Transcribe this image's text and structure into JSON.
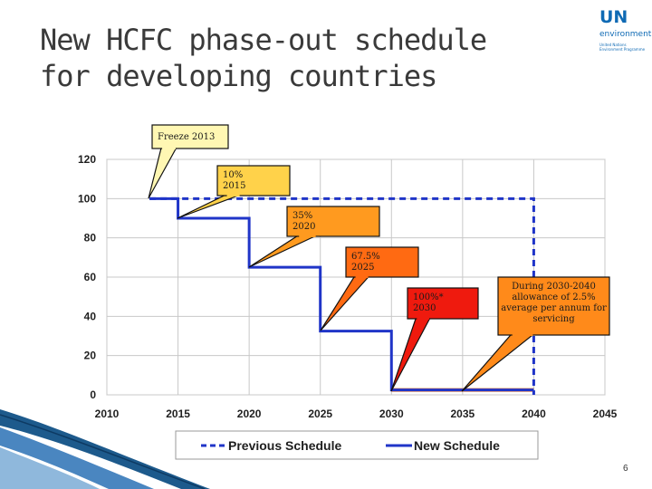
{
  "title": {
    "line1": "New HCFC phase-out schedule",
    "line2": "for developing countries"
  },
  "logo": {
    "text": "UN",
    "subtext": "environment",
    "small": [
      "United Nations",
      "Environment Programme"
    ]
  },
  "page_number": "6",
  "colors": {
    "previous": "#2035c8",
    "new": "#2035c8",
    "allowance": "#f07a28",
    "freeze_box": "#fff7b3",
    "grid": "#c8c8c8"
  },
  "chart_data": {
    "type": "line",
    "xlim": [
      2010,
      2045
    ],
    "ylim": [
      0,
      120
    ],
    "x_ticks": [
      2010,
      2015,
      2020,
      2025,
      2030,
      2035,
      2040,
      2045
    ],
    "y_ticks": [
      0,
      20,
      40,
      60,
      80,
      100,
      120
    ],
    "grid": true,
    "legend_position": "bottom",
    "series": [
      {
        "name": "Previous Schedule",
        "style": "dashed",
        "points": [
          [
            2013,
            100
          ],
          [
            2040,
            100
          ],
          [
            2040,
            0
          ]
        ]
      },
      {
        "name": "New Schedule",
        "style": "solid",
        "points": [
          [
            2013,
            100
          ],
          [
            2015,
            100
          ],
          [
            2015,
            90
          ],
          [
            2020,
            90
          ],
          [
            2020,
            65
          ],
          [
            2025,
            65
          ],
          [
            2025,
            32.5
          ],
          [
            2030,
            32.5
          ],
          [
            2030,
            2.5
          ],
          [
            2040,
            2.5
          ]
        ]
      }
    ],
    "allowance_band": {
      "points": [
        [
          2030,
          2.5
        ],
        [
          2040,
          2.5
        ]
      ]
    },
    "annotations": [
      {
        "lines": [
          "Freeze 2013"
        ],
        "fill": "#fff7b3",
        "target": [
          2013,
          100
        ]
      },
      {
        "lines": [
          "10%",
          "2015"
        ],
        "fill": "#ffd24a",
        "target": [
          2015,
          90
        ]
      },
      {
        "lines": [
          "35%",
          "2020"
        ],
        "fill": "#ff9a1f",
        "target": [
          2020,
          65
        ]
      },
      {
        "lines": [
          "67.5%",
          "2025"
        ],
        "fill": "#ff6a12",
        "target": [
          2025,
          32.5
        ]
      },
      {
        "lines": [
          "100%*",
          "2030"
        ],
        "fill": "#ef1a0e",
        "target": [
          2030,
          2.5
        ]
      },
      {
        "lines": [
          "During 2030-2040",
          "allowance of 2.5%",
          "average per annum for",
          "servicing"
        ],
        "fill": "#ff8a1a",
        "target": [
          2035,
          2.5
        ]
      }
    ]
  }
}
